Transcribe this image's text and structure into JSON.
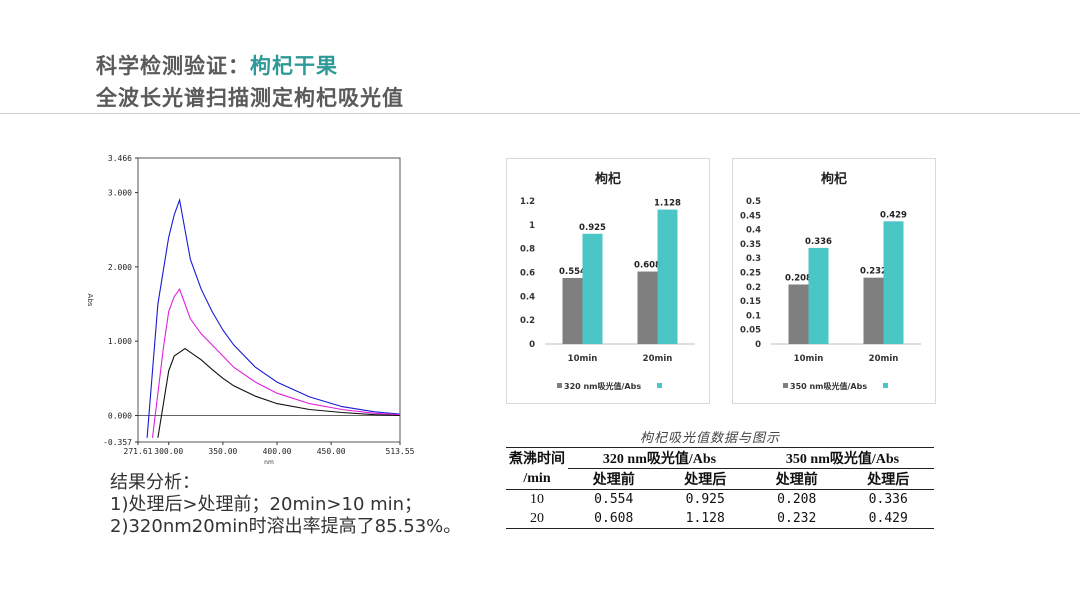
{
  "header": {
    "title_prefix": "科学检测验证：",
    "title_highlight": "枸杞干果",
    "subtitle": "全波长光谱扫描测定枸杞吸光值"
  },
  "analysis": {
    "heading": "结果分析：",
    "line1": "1)处理后>处理前；20min>10 min；",
    "line2": "2)320nm20min时溶出率提高了85.53%。"
  },
  "chart_data": [
    {
      "type": "line",
      "title": "",
      "xlabel": "nm",
      "ylabel": "Abs",
      "xlim": [
        271.61,
        513.55
      ],
      "ylim": [
        -0.357,
        3.466
      ],
      "x_ticks": [
        "271.61",
        "300.00",
        "350.00",
        "400.00",
        "450.00",
        "513.55"
      ],
      "y_ticks": [
        "3.466",
        "3.000",
        "2.000",
        "1.000",
        "0.000",
        "-0.357"
      ],
      "series": [
        {
          "color": "#1a1ad4",
          "x": [
            280,
            290,
            300,
            305,
            310,
            315,
            320,
            330,
            340,
            350,
            360,
            380,
            400,
            430,
            460,
            490,
            513
          ],
          "y": [
            -0.3,
            1.5,
            2.4,
            2.7,
            2.9,
            2.5,
            2.1,
            1.7,
            1.4,
            1.15,
            0.95,
            0.65,
            0.45,
            0.25,
            0.12,
            0.05,
            0.02
          ]
        },
        {
          "color": "#e020e0",
          "x": [
            285,
            295,
            300,
            305,
            310,
            315,
            320,
            330,
            340,
            350,
            360,
            380,
            400,
            430,
            460,
            490,
            513
          ],
          "y": [
            -0.3,
            0.9,
            1.4,
            1.6,
            1.7,
            1.5,
            1.3,
            1.1,
            0.95,
            0.8,
            0.65,
            0.45,
            0.3,
            0.16,
            0.08,
            0.03,
            0.01
          ]
        },
        {
          "color": "#111111",
          "x": [
            290,
            300,
            305,
            310,
            315,
            320,
            330,
            340,
            350,
            360,
            380,
            400,
            430,
            460,
            490,
            513
          ],
          "y": [
            -0.3,
            0.6,
            0.8,
            0.85,
            0.9,
            0.85,
            0.75,
            0.62,
            0.5,
            0.4,
            0.26,
            0.16,
            0.08,
            0.04,
            0.01,
            0.0
          ]
        }
      ]
    },
    {
      "type": "bar",
      "title": "枸杞",
      "categories": [
        "10min",
        "20min"
      ],
      "series": [
        {
          "name": "320 nm吸光值/Abs",
          "color": "#7f7f7f",
          "values": [
            0.554,
            0.608
          ]
        },
        {
          "name": "",
          "color": "#4bc6c6",
          "values": [
            0.925,
            1.128
          ]
        }
      ],
      "ylim": [
        0,
        1.2
      ],
      "y_ticks": [
        0,
        0.2,
        0.4,
        0.6,
        0.8,
        1,
        1.2
      ],
      "data_labels": [
        [
          "0.554",
          "0.608"
        ],
        [
          "0.925",
          "1.128"
        ]
      ],
      "legend": "bottom"
    },
    {
      "type": "bar",
      "title": "枸杞",
      "categories": [
        "10min",
        "20min"
      ],
      "series": [
        {
          "name": "350 nm吸光值/Abs",
          "color": "#7f7f7f",
          "values": [
            0.208,
            0.232
          ]
        },
        {
          "name": "",
          "color": "#4bc6c6",
          "values": [
            0.336,
            0.429
          ]
        }
      ],
      "ylim": [
        0,
        0.5
      ],
      "y_ticks": [
        0,
        0.05,
        0.1,
        0.15,
        0.2,
        0.25,
        0.3,
        0.35,
        0.4,
        0.45,
        0.5
      ],
      "data_labels": [
        [
          "0.208",
          "0.232"
        ],
        [
          "0.336",
          "0.429"
        ]
      ],
      "legend": "bottom"
    }
  ],
  "table": {
    "caption": "枸杞吸光值数据与图示",
    "row_header_line1": "煮沸时间",
    "row_header_line2": "/min",
    "group1": "320 nm吸光值/Abs",
    "group2": "350 nm吸光值/Abs",
    "sub": [
      "处理前",
      "处理后",
      "处理前",
      "处理后"
    ],
    "rows": [
      {
        "time": "10",
        "v": [
          "0.554",
          "0.925",
          "0.208",
          "0.336"
        ]
      },
      {
        "time": "20",
        "v": [
          "0.608",
          "1.128",
          "0.232",
          "0.429"
        ]
      }
    ]
  }
}
